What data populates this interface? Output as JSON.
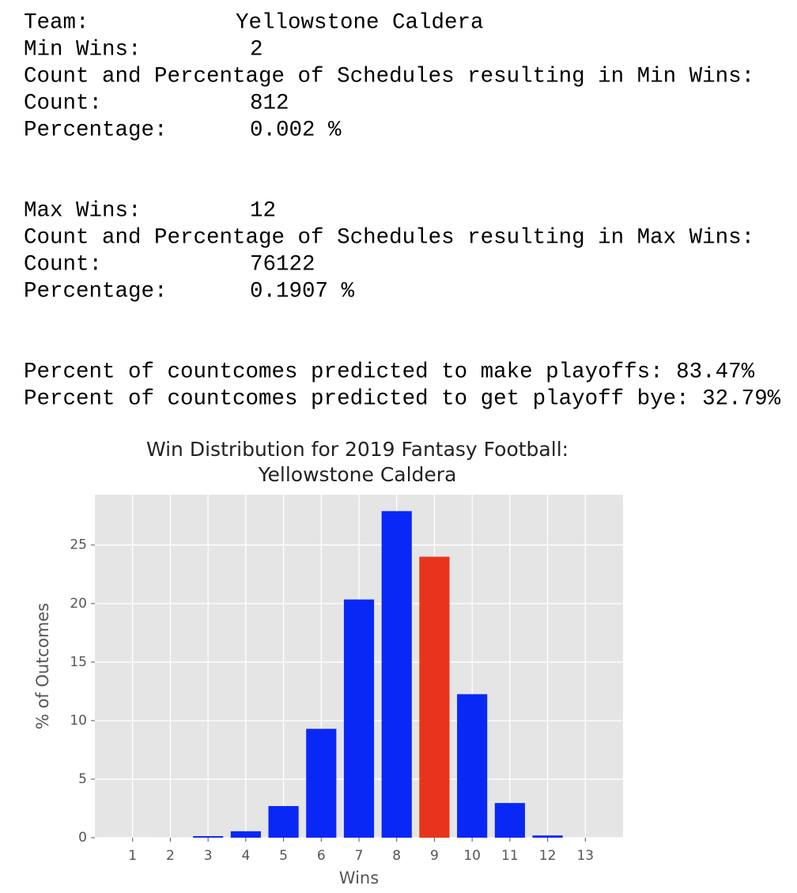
{
  "text_output": [
    {
      "label": "Team:",
      "value": "Yellowstone Caldera"
    },
    {
      "label": "Min Wins:",
      "value": "2"
    },
    {
      "text": "Count and Percentage of Schedules resulting in Min Wins:"
    },
    {
      "label": "Count:",
      "value": "812"
    },
    {
      "label": "Percentage:",
      "value": "0.002 %"
    },
    {
      "label": "Max Wins:",
      "value": "12"
    },
    {
      "text": "Count and Percentage of Schedules resulting in Max Wins:"
    },
    {
      "label": "Count:",
      "value": "76122"
    },
    {
      "label": "Percentage:",
      "value": "0.1907 %"
    },
    {
      "text": "Percent of countcomes predicted to make playoffs: 83.47%"
    },
    {
      "text": "Percent of countcomes predicted to get playoff bye: 32.79%"
    }
  ],
  "chart_data": {
    "type": "bar",
    "title": [
      "Win Distribution for 2019 Fantasy Football:",
      "Yellowstone Caldera"
    ],
    "x_label": "Wins",
    "y_label": "% of Outcomes",
    "x": [
      1,
      2,
      3,
      4,
      5,
      6,
      7,
      8,
      9,
      10,
      11,
      12,
      13
    ],
    "values": [
      0,
      0.002,
      0.13,
      0.55,
      2.7,
      9.3,
      20.35,
      27.9,
      24.0,
      12.26,
      2.96,
      0.19,
      0
    ],
    "colors": [
      "#0a28f5",
      "#0a28f5",
      "#0a28f5",
      "#0a28f5",
      "#0a28f5",
      "#0a28f5",
      "#0a28f5",
      "#0a28f5",
      "#e8341c",
      "#0a28f5",
      "#0a28f5",
      "#0a28f5",
      "#0a28f5"
    ],
    "xlim": [
      0,
      14
    ],
    "xticks": [
      1,
      2,
      3,
      4,
      5,
      6,
      7,
      8,
      9,
      10,
      11,
      12,
      13
    ],
    "ylim": [
      0,
      29.3
    ],
    "yticks": [
      0,
      5,
      10,
      15,
      20,
      25
    ],
    "bar_width": 0.8,
    "grid": true,
    "background": "#e5e5e5"
  }
}
